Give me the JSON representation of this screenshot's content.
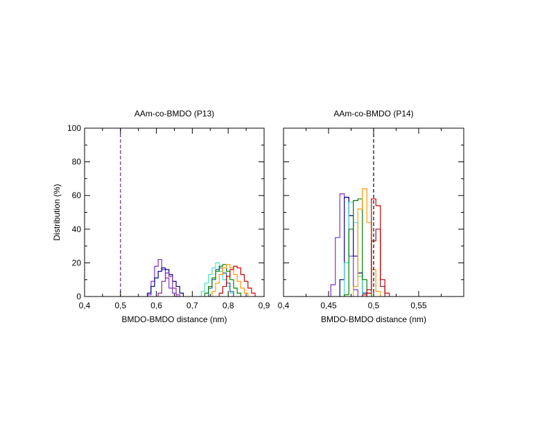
{
  "chart_data": [
    {
      "type": "histogram",
      "title": "AAm-co-BMDO (P13)",
      "xlabel": "BMDO-BMDO distance (nm)",
      "ylabel": "Distribution (%)",
      "xlim": [
        0.4,
        0.9
      ],
      "ylim": [
        0,
        100
      ],
      "xticks": [
        0.4,
        0.5,
        0.6,
        0.7,
        0.8,
        0.9
      ],
      "xtick_labels": [
        "0,4",
        "0,5",
        "0,6",
        "0,7",
        "0,8",
        "0,9"
      ],
      "yticks": [
        0,
        20,
        40,
        60,
        80,
        100
      ],
      "ytick_labels": [
        "0",
        "20",
        "40",
        "60",
        "80",
        "100"
      ],
      "reference_line": {
        "x": 0.5,
        "style": "dashed",
        "color": "#5a2a86"
      },
      "series": [
        {
          "color": "#7a2fc8",
          "bin_width": 0.01,
          "bins": [
            [
              0.58,
              1
            ],
            [
              0.59,
              9
            ],
            [
              0.6,
              18
            ],
            [
              0.61,
              22
            ],
            [
              0.62,
              16
            ],
            [
              0.63,
              11
            ],
            [
              0.64,
              5
            ],
            [
              0.65,
              2
            ],
            [
              0.66,
              0
            ]
          ]
        },
        {
          "color": "#00008b",
          "bin_width": 0.01,
          "bins": [
            [
              0.58,
              2
            ],
            [
              0.59,
              6
            ],
            [
              0.6,
              11
            ],
            [
              0.61,
              15
            ],
            [
              0.62,
              17
            ],
            [
              0.63,
              16
            ],
            [
              0.64,
              13
            ],
            [
              0.65,
              9
            ],
            [
              0.66,
              6
            ],
            [
              0.67,
              2
            ]
          ]
        },
        {
          "color": "#8b2aa8",
          "bin_width": 0.01,
          "bins": [
            [
              0.61,
              2
            ],
            [
              0.62,
              9
            ],
            [
              0.63,
              14
            ],
            [
              0.64,
              12
            ],
            [
              0.65,
              5
            ],
            [
              0.66,
              1
            ]
          ]
        },
        {
          "color": "#40e0d0",
          "bin_width": 0.01,
          "bins": [
            [
              0.73,
              3
            ],
            [
              0.74,
              8
            ],
            [
              0.75,
              13
            ],
            [
              0.76,
              17
            ],
            [
              0.77,
              20
            ],
            [
              0.78,
              15
            ],
            [
              0.79,
              10
            ],
            [
              0.8,
              6
            ],
            [
              0.81,
              2
            ]
          ]
        },
        {
          "color": "#1a5a8a",
          "bin_width": 0.01,
          "bins": [
            [
              0.75,
              5
            ],
            [
              0.76,
              10
            ],
            [
              0.77,
              16
            ],
            [
              0.78,
              17
            ],
            [
              0.79,
              14
            ],
            [
              0.8,
              8
            ],
            [
              0.81,
              3
            ]
          ]
        },
        {
          "color": "#008000",
          "bin_width": 0.01,
          "bins": [
            [
              0.74,
              2
            ],
            [
              0.75,
              6
            ],
            [
              0.76,
              11
            ],
            [
              0.77,
              15
            ],
            [
              0.78,
              18
            ],
            [
              0.79,
              19
            ],
            [
              0.8,
              15
            ],
            [
              0.81,
              10
            ],
            [
              0.82,
              5
            ],
            [
              0.83,
              2
            ]
          ]
        },
        {
          "color": "#ff9900",
          "bin_width": 0.01,
          "bins": [
            [
              0.76,
              3
            ],
            [
              0.77,
              8
            ],
            [
              0.78,
              13
            ],
            [
              0.79,
              17
            ],
            [
              0.8,
              19
            ],
            [
              0.81,
              17
            ],
            [
              0.82,
              13
            ],
            [
              0.83,
              9
            ],
            [
              0.84,
              5
            ],
            [
              0.85,
              2
            ]
          ]
        },
        {
          "color": "#cc0000",
          "bin_width": 0.01,
          "bins": [
            [
              0.78,
              2
            ],
            [
              0.79,
              6
            ],
            [
              0.8,
              12
            ],
            [
              0.81,
              16
            ],
            [
              0.82,
              18
            ],
            [
              0.83,
              17
            ],
            [
              0.84,
              13
            ],
            [
              0.85,
              9
            ],
            [
              0.86,
              5
            ],
            [
              0.87,
              2
            ]
          ]
        }
      ]
    },
    {
      "type": "histogram",
      "title": "AAm-co-BMDO (P14)",
      "xlabel": "BMDO-BMDO distance (nm)",
      "ylabel": "",
      "xlim": [
        0.4,
        0.6
      ],
      "ylim": [
        0,
        100
      ],
      "xticks": [
        0.4,
        0.45,
        0.5,
        0.55
      ],
      "xtick_labels": [
        "0,4",
        "0,45",
        "0,5",
        "0,55"
      ],
      "yticks": [
        0,
        20,
        40,
        60,
        80,
        100
      ],
      "ytick_labels": [],
      "reference_line": {
        "x": 0.5,
        "style": "dashed",
        "color": "#000000"
      },
      "series": [
        {
          "color": "#7a2fc8",
          "bin_width": 0.005,
          "bins": [
            [
              0.455,
              7
            ],
            [
              0.46,
              35
            ],
            [
              0.465,
              61
            ],
            [
              0.47,
              59
            ],
            [
              0.475,
              24
            ],
            [
              0.48,
              4
            ]
          ]
        },
        {
          "color": "#00008b",
          "bin_width": 0.005,
          "bins": [
            [
              0.465,
              10
            ],
            [
              0.47,
              59
            ],
            [
              0.475,
              48
            ],
            [
              0.48,
              24
            ],
            [
              0.485,
              14
            ],
            [
              0.49,
              2
            ]
          ]
        },
        {
          "color": "#40e0d0",
          "bin_width": 0.005,
          "bins": [
            [
              0.47,
              20
            ],
            [
              0.475,
              56
            ],
            [
              0.48,
              44
            ],
            [
              0.485,
              12
            ]
          ]
        },
        {
          "color": "#008000",
          "bin_width": 0.005,
          "bins": [
            [
              0.47,
              1
            ],
            [
              0.475,
              40
            ],
            [
              0.48,
              57
            ],
            [
              0.485,
              58
            ],
            [
              0.49,
              10
            ],
            [
              0.495,
              2
            ]
          ]
        },
        {
          "color": "#ff9900",
          "bin_width": 0.005,
          "bins": [
            [
              0.48,
              6
            ],
            [
              0.485,
              52
            ],
            [
              0.49,
              64
            ],
            [
              0.495,
              44
            ],
            [
              0.5,
              16
            ],
            [
              0.505,
              3
            ]
          ]
        },
        {
          "color": "#8b1a1a",
          "bin_width": 0.005,
          "bins": [
            [
              0.49,
              1
            ],
            [
              0.495,
              4
            ],
            [
              0.5,
              33
            ],
            [
              0.505,
              40
            ],
            [
              0.51,
              6
            ]
          ]
        },
        {
          "color": "#cc0000",
          "bin_width": 0.005,
          "bins": [
            [
              0.495,
              2
            ],
            [
              0.5,
              58
            ],
            [
              0.505,
              54
            ],
            [
              0.51,
              10
            ],
            [
              0.515,
              2
            ]
          ]
        }
      ]
    }
  ]
}
